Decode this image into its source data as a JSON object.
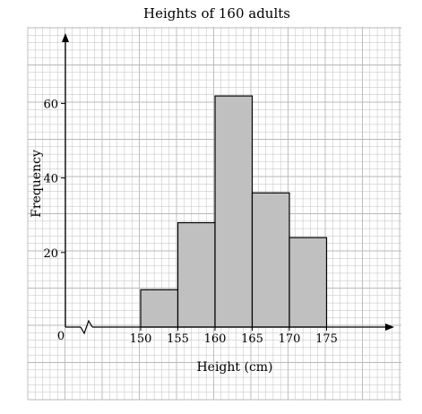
{
  "chart_data": {
    "type": "bar",
    "subtype": "histogram",
    "title": "Heights of 160 adults",
    "xlabel": "Height (cm)",
    "ylabel": "Frequency",
    "bins": [
      {
        "from": 150,
        "to": 155,
        "frequency": 10
      },
      {
        "from": 155,
        "to": 160,
        "frequency": 28
      },
      {
        "from": 160,
        "to": 165,
        "frequency": 62
      },
      {
        "from": 165,
        "to": 170,
        "frequency": 36
      },
      {
        "from": 170,
        "to": 175,
        "frequency": 24
      }
    ],
    "x_ticks": [
      "150",
      "155",
      "160",
      "165",
      "170",
      "175"
    ],
    "y_ticks": [
      "20",
      "40",
      "60"
    ],
    "origin_label": "0",
    "x_axis_break": true,
    "grid": true,
    "bar_color": "#c0c0c0",
    "grid_color": "#b8b8b8"
  }
}
